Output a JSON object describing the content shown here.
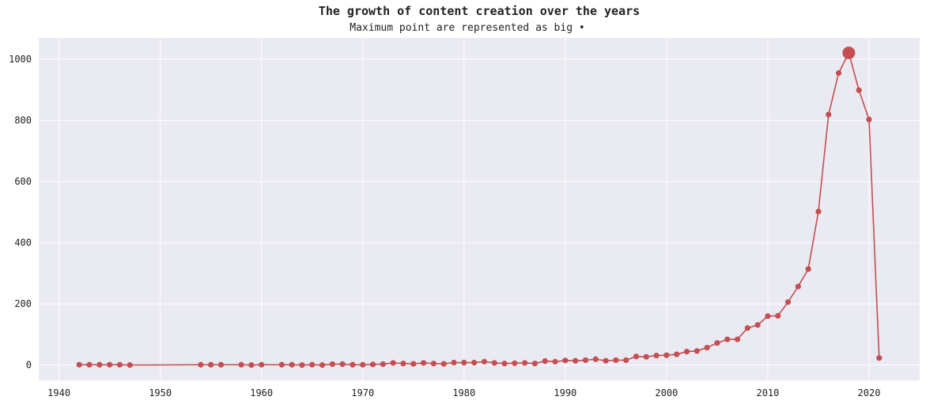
{
  "chart_data": {
    "type": "line",
    "title": "The growth of content creation over the years",
    "subtitle": "Maximum point are represented as big •",
    "xlabel": "",
    "ylabel": "",
    "xlim": [
      1938,
      2025
    ],
    "ylim": [
      -50,
      1070
    ],
    "xticks": [
      1940,
      1950,
      1960,
      1970,
      1980,
      1990,
      2000,
      2010,
      2020
    ],
    "yticks": [
      0,
      200,
      400,
      600,
      800,
      1000
    ],
    "grid": true,
    "colors": {
      "line": "#c44e52",
      "background": "#eaeaf2",
      "grid": "#ffffff"
    },
    "max_point": {
      "x": 2018,
      "y": 1021
    },
    "series": [
      {
        "x": [
          1942,
          1943,
          1944,
          1945,
          1946,
          1947,
          1954,
          1955,
          1956,
          1958,
          1959,
          1960,
          1962,
          1963,
          1964,
          1965,
          1966,
          1967,
          1968,
          1969,
          1970,
          1971,
          1972,
          1973,
          1974,
          1975,
          1976,
          1977,
          1978,
          1979,
          1980,
          1981,
          1982,
          1983,
          1984,
          1985,
          1986,
          1987,
          1988,
          1989,
          1990,
          1991,
          1992,
          1993,
          1994,
          1995,
          1996,
          1997,
          1998,
          1999,
          2000,
          2001,
          2002,
          2003,
          2004,
          2005,
          2006,
          2007,
          2008,
          2009,
          2010,
          2011,
          2012,
          2013,
          2014,
          2015,
          2016,
          2017,
          2018,
          2019,
          2020,
          2021
        ],
        "y": [
          1,
          1,
          1,
          1,
          1,
          0,
          1,
          1,
          1,
          1,
          0,
          1,
          1,
          1,
          0,
          1,
          0,
          3,
          3,
          1,
          1,
          2,
          3,
          7,
          5,
          4,
          7,
          5,
          4,
          8,
          8,
          8,
          11,
          7,
          5,
          6,
          7,
          5,
          13,
          11,
          15,
          14,
          16,
          19,
          14,
          16,
          16,
          28,
          27,
          31,
          32,
          35,
          44,
          46,
          57,
          72,
          84,
          84,
          121,
          131,
          160,
          161,
          206,
          257,
          314,
          502,
          819,
          955,
          1021,
          899,
          803,
          23
        ]
      }
    ]
  }
}
